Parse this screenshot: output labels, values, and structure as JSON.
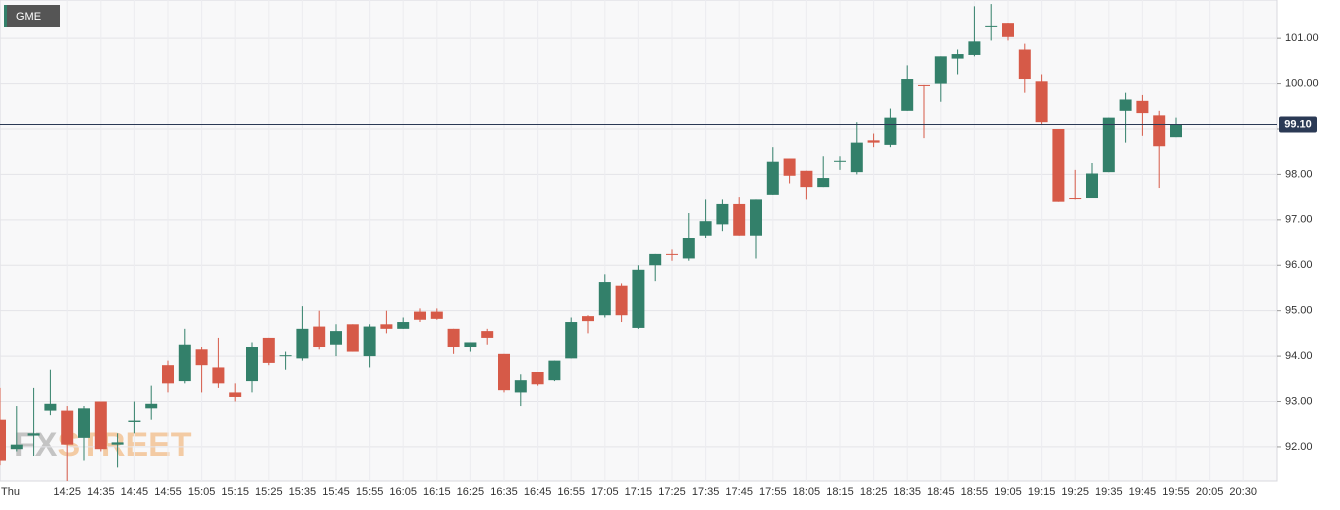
{
  "chart_data": {
    "type": "candlestick",
    "title": "GME",
    "watermark": [
      "FX",
      "STREET"
    ],
    "categories": [
      "Thu",
      null,
      null,
      null,
      "14:25",
      null,
      "14:35",
      null,
      "14:45",
      null,
      "14:55",
      null,
      "15:05",
      null,
      "15:15",
      null,
      "15:25",
      null,
      "15:35",
      null,
      "15:45",
      null,
      "15:55",
      null,
      "16:05",
      null,
      "16:15",
      null,
      "16:25",
      null,
      "16:35",
      null,
      "16:45",
      null,
      "16:55",
      null,
      "17:05",
      null,
      "17:15",
      null,
      "17:25",
      null,
      "17:35",
      null,
      "17:45",
      null,
      "17:55",
      null,
      "18:05",
      null,
      "18:15",
      null,
      "18:25",
      null,
      "18:35",
      null,
      "18:45",
      null,
      "18:55",
      null,
      "19:05",
      null,
      "19:15",
      null,
      "19:25",
      null,
      "19:35",
      null,
      "19:45",
      null,
      "19:55",
      null,
      "20:05",
      null,
      "20:30"
    ],
    "open": [
      92.6,
      91.95,
      92.25,
      92.8,
      92.8,
      92.2,
      93.0,
      92.05,
      92.55,
      92.85,
      93.8,
      93.45,
      94.15,
      93.75,
      93.2,
      93.45,
      94.4,
      94.0,
      93.95,
      94.65,
      94.25,
      94.7,
      94.0,
      94.7,
      94.6,
      94.98,
      94.98,
      94.6,
      94.2,
      94.55,
      94.05,
      93.2,
      93.65,
      93.47,
      93.95,
      94.88,
      94.9,
      95.55,
      94.62,
      96.0,
      96.25,
      96.15,
      96.65,
      96.9,
      97.35,
      96.65,
      97.55,
      98.35,
      98.08,
      97.72,
      98.28,
      98.05,
      98.75,
      98.65,
      99.4,
      99.97,
      100.0,
      100.55,
      100.63,
      101.25,
      101.33,
      100.75,
      100.05,
      99.0,
      97.48,
      97.48,
      98.05,
      99.4,
      99.62,
      99.3,
      98.82,
      null,
      null,
      null,
      null
    ],
    "high": [
      93.3,
      92.9,
      93.3,
      93.7,
      92.9,
      92.9,
      93.0,
      92.3,
      93.0,
      93.35,
      93.9,
      94.6,
      94.2,
      94.4,
      93.4,
      94.3,
      94.4,
      94.1,
      95.1,
      95.0,
      94.7,
      94.7,
      94.7,
      95.0,
      94.85,
      95.05,
      95.05,
      94.6,
      94.3,
      94.6,
      94.05,
      93.6,
      93.65,
      93.9,
      94.85,
      94.9,
      95.8,
      95.6,
      96.0,
      96.25,
      96.35,
      97.15,
      97.45,
      97.45,
      97.5,
      97.45,
      98.6,
      98.35,
      98.08,
      98.4,
      98.4,
      99.15,
      98.9,
      99.45,
      100.4,
      99.97,
      100.6,
      100.75,
      101.7,
      101.75,
      101.33,
      100.88,
      100.2,
      99.0,
      98.1,
      98.25,
      99.25,
      99.8,
      99.75,
      99.4,
      99.25,
      null,
      null,
      null,
      null
    ],
    "low": [
      91.6,
      91.9,
      91.8,
      92.7,
      91.25,
      91.7,
      91.9,
      91.55,
      92.3,
      92.6,
      93.2,
      93.4,
      93.2,
      93.3,
      93.0,
      93.2,
      93.8,
      93.7,
      93.9,
      94.15,
      94.0,
      94.1,
      93.75,
      94.5,
      94.6,
      94.75,
      94.8,
      94.05,
      94.1,
      94.25,
      93.2,
      92.9,
      93.35,
      93.45,
      93.95,
      94.5,
      94.85,
      94.75,
      94.6,
      95.65,
      96.1,
      96.1,
      96.6,
      96.75,
      96.65,
      96.15,
      97.55,
      97.8,
      97.45,
      97.72,
      98.1,
      98.0,
      98.6,
      98.6,
      99.4,
      98.8,
      99.6,
      100.2,
      100.6,
      100.95,
      100.95,
      99.8,
      99.1,
      97.4,
      97.45,
      97.48,
      98.05,
      98.7,
      98.85,
      97.7,
      98.82,
      null,
      null,
      null,
      null
    ],
    "close": [
      91.7,
      92.05,
      92.3,
      92.95,
      92.05,
      92.85,
      91.95,
      92.1,
      92.58,
      92.95,
      93.4,
      94.25,
      93.8,
      93.4,
      93.1,
      94.2,
      93.85,
      94.02,
      94.6,
      94.2,
      94.55,
      94.1,
      94.65,
      94.6,
      94.75,
      94.8,
      94.82,
      94.2,
      94.3,
      94.4,
      93.25,
      93.47,
      93.38,
      93.9,
      94.75,
      94.77,
      95.63,
      94.9,
      95.9,
      96.25,
      96.23,
      96.6,
      96.97,
      97.35,
      96.65,
      97.45,
      98.28,
      97.97,
      97.72,
      97.92,
      98.3,
      98.7,
      98.7,
      99.25,
      100.1,
      99.95,
      100.6,
      100.65,
      100.93,
      101.27,
      101.03,
      100.1,
      99.15,
      97.4,
      97.47,
      98.02,
      99.25,
      99.65,
      99.35,
      98.62,
      99.1,
      null,
      null,
      null,
      null
    ],
    "up_color": "#33806a",
    "down_color": "#d65a48",
    "ylim": [
      91.25,
      101.84
    ],
    "yticks": [
      {
        "value": 92,
        "label": "92.00"
      },
      {
        "value": 93,
        "label": "93.00"
      },
      {
        "value": 94,
        "label": "94.00"
      },
      {
        "value": 95,
        "label": "95.00"
      },
      {
        "value": 96,
        "label": "96.00"
      },
      {
        "value": 97,
        "label": "97.00"
      },
      {
        "value": 98,
        "label": "98.00"
      },
      {
        "value": 99,
        "label": "99.00"
      },
      {
        "value": 100,
        "label": "100.00"
      },
      {
        "value": 101,
        "label": "101.00"
      }
    ],
    "current_price": {
      "value": 99.1,
      "label": "99.10"
    },
    "grid": true
  }
}
